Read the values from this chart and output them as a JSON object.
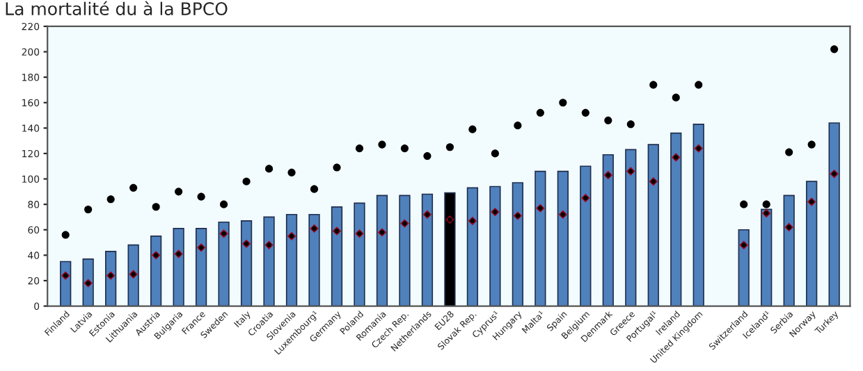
{
  "chart_data": {
    "type": "bar",
    "title": "La mortalité du à la BPCO",
    "categories": [
      "Finland",
      "Latvia",
      "Estonia",
      "Lithuania",
      "Austria",
      "Bulgaria",
      "France",
      "Sweden",
      "Italy",
      "Croatia",
      "Slovenia",
      "Luxembourg¹",
      "Germany",
      "Poland",
      "Romania",
      "Czech Rep.",
      "Netherlands",
      "EU28",
      "Slovak Rep.",
      "Cyprus¹",
      "Hungary",
      "Malta¹",
      "Spain",
      "Belgium",
      "Denmark",
      "Greece",
      "Portugal¹",
      "Ireland",
      "United Kingdom",
      null,
      "Switzerland",
      "Iceland¹",
      "Serbia",
      "Norway",
      "Turkey"
    ],
    "series": [
      {
        "colors": [
          "#4f81bd",
          "#4f81bd",
          "#4f81bd",
          "#4f81bd",
          "#4f81bd",
          "#4f81bd",
          "#4f81bd",
          "#4f81bd",
          "#4f81bd",
          "#4f81bd",
          "#4f81bd",
          "#4f81bd",
          "#4f81bd",
          "#4f81bd",
          "#4f81bd",
          "#4f81bd",
          "#4f81bd",
          "#000000",
          "#4f81bd",
          "#4f81bd",
          "#4f81bd",
          "#4f81bd",
          "#4f81bd",
          "#4f81bd",
          "#4f81bd",
          "#4f81bd",
          "#4f81bd",
          "#4f81bd",
          "#4f81bd",
          "#4f81bd",
          "#4f81bd",
          "#4f81bd",
          "#4f81bd",
          "#4f81bd",
          "#4f81bd"
        ],
        "values": [
          35,
          37,
          43,
          48,
          55,
          61,
          61,
          66,
          67,
          70,
          72,
          72,
          78,
          81,
          87,
          87,
          88,
          89,
          93,
          94,
          97,
          106,
          106,
          110,
          119,
          123,
          127,
          136,
          143,
          null,
          60,
          76,
          87,
          98,
          144
        ]
      },
      {
        "type": "scatter",
        "marker": "diamond",
        "color": "#a0001c",
        "values": [
          24,
          18,
          24,
          25,
          40,
          41,
          46,
          57,
          49,
          48,
          55,
          61,
          59,
          57,
          58,
          65,
          72,
          68,
          67,
          74,
          71,
          77,
          72,
          85,
          103,
          106,
          98,
          117,
          124,
          null,
          48,
          73,
          62,
          82,
          104
        ]
      },
      {
        "type": "scatter",
        "marker": "circle",
        "color": "#000000",
        "values": [
          56,
          76,
          84,
          93,
          78,
          90,
          86,
          80,
          98,
          108,
          105,
          92,
          109,
          124,
          127,
          124,
          118,
          125,
          139,
          120,
          142,
          152,
          160,
          152,
          146,
          143,
          174,
          164,
          174,
          null,
          80,
          80,
          121,
          127,
          202
        ]
      }
    ],
    "ylim": [
      0,
      220
    ],
    "yticks": [
      0,
      20,
      40,
      60,
      80,
      100,
      120,
      140,
      160,
      180,
      200,
      220
    ],
    "grid": false,
    "legend": false
  }
}
